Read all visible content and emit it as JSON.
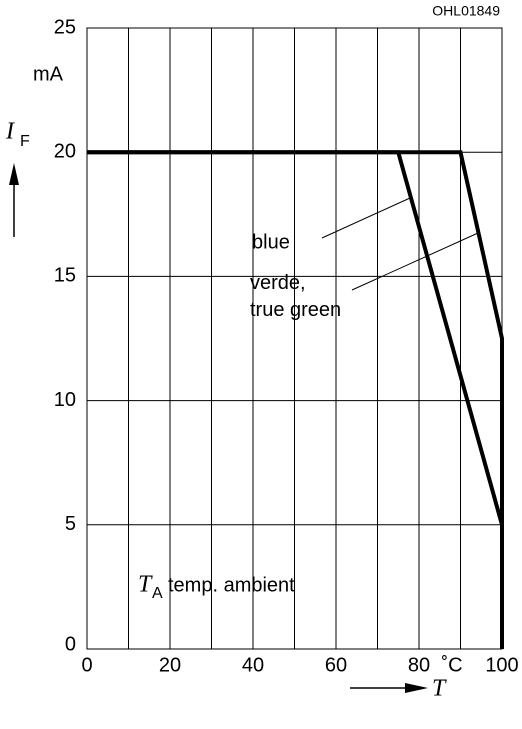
{
  "chart_data": {
    "type": "line",
    "figure_id": "OHL01849",
    "y_label": {
      "symbol": "I",
      "subscript": "F"
    },
    "y_unit": "mA",
    "x_label": "T",
    "x_unit": "˚C",
    "annotation": {
      "symbol": "T",
      "subscript": "A",
      "text": "temp. ambient"
    },
    "xlim": [
      0,
      100
    ],
    "ylim": [
      0,
      25
    ],
    "xticks": [
      0,
      20,
      40,
      60,
      80,
      100
    ],
    "x_minor_gridlines": [
      10,
      30,
      50,
      70,
      90
    ],
    "yticks": [
      0,
      5,
      10,
      15,
      20,
      25
    ],
    "grid": true,
    "series": [
      {
        "name": "blue",
        "color": "#000000",
        "x": [
          0,
          75,
          100,
          100
        ],
        "values": [
          20,
          20,
          5,
          0
        ]
      },
      {
        "name": "verde,\ntrue green",
        "color": "#000000",
        "x": [
          0,
          90,
          100,
          100
        ],
        "values": [
          20,
          20,
          12.5,
          0
        ]
      }
    ]
  }
}
